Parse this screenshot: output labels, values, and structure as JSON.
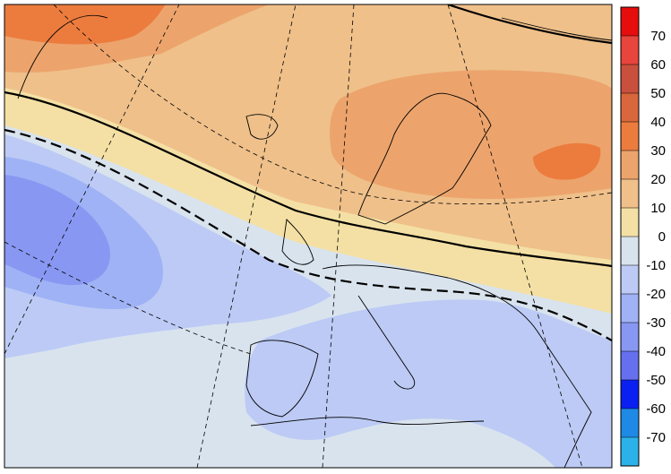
{
  "colorbar": {
    "ticks": [
      70,
      60,
      50,
      40,
      30,
      20,
      10,
      0,
      -10,
      -20,
      -30,
      -40,
      -50,
      -60,
      -70
    ],
    "colors": [
      "#e60d0d",
      "#e8453c",
      "#c9503c",
      "#d8673c",
      "#ec7c3e",
      "#eca46c",
      "#efc08a",
      "#f4e0a4",
      "#d9e3ee",
      "#bccaf5",
      "#9fb2f5",
      "#8898f2",
      "#6670ee",
      "#0a20f0",
      "#1f8ae6",
      "#2cb2e8"
    ]
  }
}
